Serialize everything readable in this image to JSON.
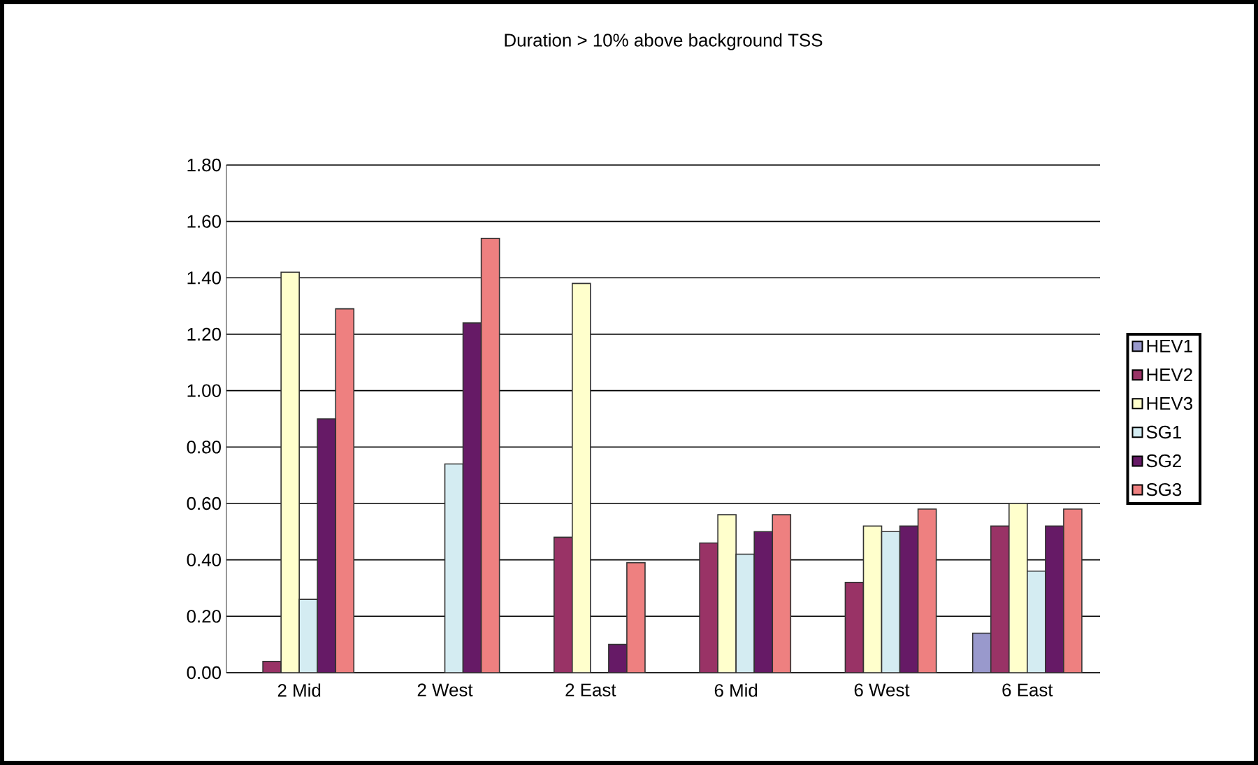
{
  "chart_data": {
    "type": "bar",
    "title": "Duration > 10% above background TSS",
    "categories": [
      "2 Mid",
      "2 West",
      "2 East",
      "6 Mid",
      "6 West",
      "6 East"
    ],
    "series": [
      {
        "name": "HEV1",
        "color": "#9999cc",
        "values": [
          null,
          null,
          null,
          null,
          null,
          0.14
        ]
      },
      {
        "name": "HEV2",
        "color": "#993366",
        "values": [
          0.04,
          null,
          0.48,
          0.46,
          0.32,
          0.52
        ]
      },
      {
        "name": "HEV3",
        "color": "#ffffcc",
        "values": [
          1.42,
          null,
          1.38,
          0.56,
          0.52,
          0.6
        ]
      },
      {
        "name": "SG1",
        "color": "#d4ecf2",
        "values": [
          0.26,
          0.74,
          null,
          0.42,
          0.5,
          0.36
        ]
      },
      {
        "name": "SG2",
        "color": "#661a66",
        "values": [
          0.9,
          1.24,
          0.1,
          0.5,
          0.52,
          0.52
        ]
      },
      {
        "name": "SG3",
        "color": "#ee8080",
        "values": [
          1.29,
          1.54,
          0.39,
          0.56,
          0.58,
          0.58
        ]
      }
    ],
    "ylim": [
      0,
      1.8
    ],
    "yticks": [
      {
        "value": 0,
        "label": "0.00"
      },
      {
        "value": 0.2,
        "label": "0.20"
      },
      {
        "value": 0.4,
        "label": "0.40"
      },
      {
        "value": 0.6,
        "label": "0.60"
      },
      {
        "value": 0.8,
        "label": "0.80"
      },
      {
        "value": 1.0,
        "label": "1.00"
      },
      {
        "value": 1.2,
        "label": "1.20"
      },
      {
        "value": 1.4,
        "label": "1.40"
      },
      {
        "value": 1.6,
        "label": "1.60"
      },
      {
        "value": 1.8,
        "label": "1.80"
      }
    ],
    "grid": "y",
    "legend": "right"
  }
}
